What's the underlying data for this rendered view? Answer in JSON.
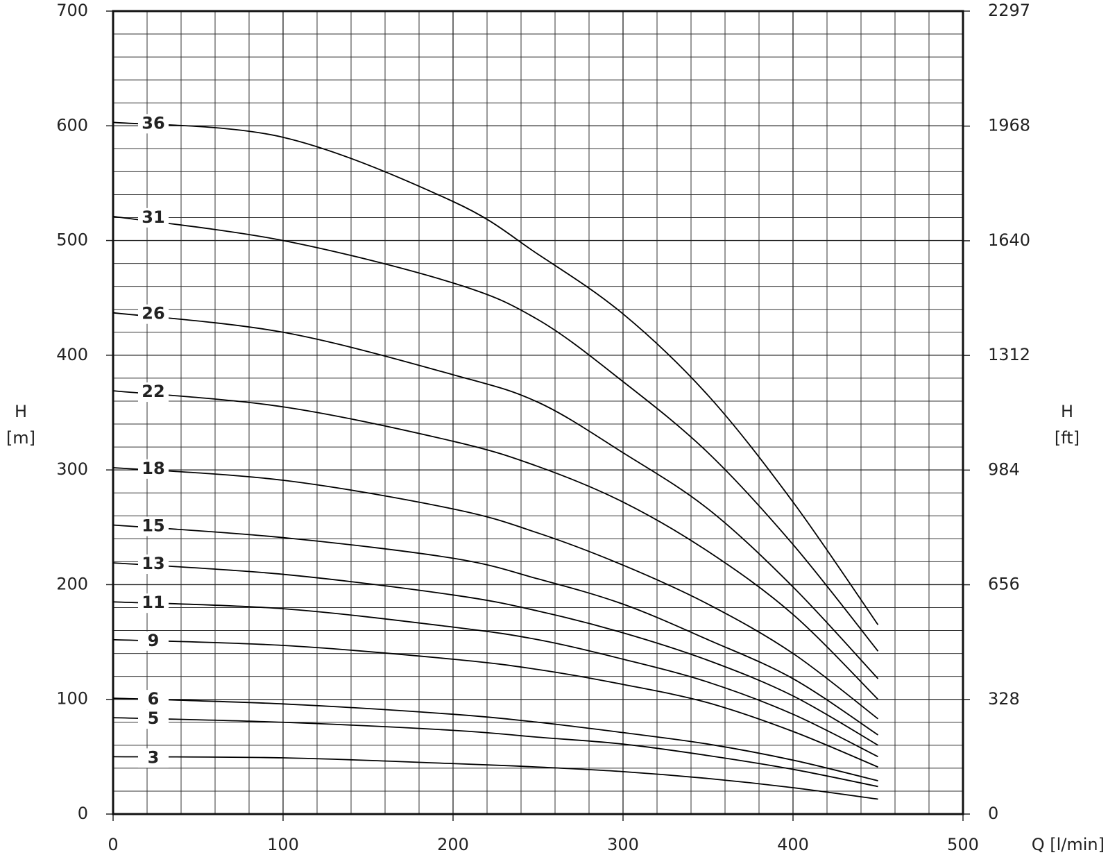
{
  "chart_data": {
    "type": "line",
    "xlabel": "Q [l/min]",
    "ylabel": "H",
    "yunit": "[m]",
    "y2label": "H",
    "y2unit": "[ft]",
    "x": [
      0,
      100,
      200,
      250,
      300,
      350,
      400,
      450
    ],
    "xlim": [
      0,
      500
    ],
    "xticks": [
      0,
      100,
      200,
      300,
      400,
      500
    ],
    "minor_xticks": [
      20,
      40,
      60,
      80,
      120,
      140,
      160,
      180,
      220,
      240,
      260,
      280,
      320,
      340,
      360,
      380,
      420,
      440,
      460,
      480
    ],
    "ylim": [
      0,
      700
    ],
    "yticks": [
      0,
      100,
      200,
      300,
      400,
      500,
      600,
      700
    ],
    "minor_yticks": [
      20,
      40,
      60,
      80,
      120,
      140,
      160,
      180,
      220,
      240,
      260,
      280,
      320,
      340,
      360,
      380,
      420,
      440,
      460,
      480,
      520,
      540,
      560,
      580,
      620,
      640,
      660,
      680
    ],
    "y2lim": [
      0,
      2297
    ],
    "y2ticks": [
      0,
      328,
      656,
      984,
      1312,
      1640,
      1968,
      2297
    ],
    "grid": true,
    "series": [
      {
        "name": "36",
        "color": "#000000",
        "values": [
          603,
          590,
          534,
          488,
          436,
          365,
          272,
          165
        ]
      },
      {
        "name": "31",
        "color": "#000000",
        "values": [
          521,
          500,
          463,
          431,
          377,
          315,
          235,
          142
        ]
      },
      {
        "name": "26",
        "color": "#000000",
        "values": [
          437,
          420,
          383,
          359,
          315,
          266,
          198,
          118
        ]
      },
      {
        "name": "22",
        "color": "#000000",
        "values": [
          369,
          355,
          325,
          303,
          272,
          229,
          174,
          100
        ]
      },
      {
        "name": "18",
        "color": "#000000",
        "values": [
          302,
          291,
          266,
          245,
          217,
          183,
          140,
          83
        ]
      },
      {
        "name": "15",
        "color": "#000000",
        "values": [
          252,
          241,
          223,
          205,
          183,
          152,
          118,
          69
        ]
      },
      {
        "name": "13",
        "color": "#000000",
        "values": [
          219,
          209,
          191,
          177,
          158,
          134,
          103,
          60
        ]
      },
      {
        "name": "11",
        "color": "#000000",
        "values": [
          185,
          179,
          163,
          152,
          135,
          115,
          87,
          50
        ]
      },
      {
        "name": "9",
        "color": "#000000",
        "values": [
          152,
          147,
          135,
          126,
          113,
          97,
          72,
          41
        ]
      },
      {
        "name": "6",
        "color": "#000000",
        "values": [
          101,
          96,
          87,
          80,
          71,
          61,
          47,
          29
        ]
      },
      {
        "name": "5",
        "color": "#000000",
        "values": [
          84,
          80,
          73,
          67,
          61,
          51,
          39,
          24
        ]
      },
      {
        "name": "3",
        "color": "#000000",
        "values": [
          50,
          49,
          44,
          41,
          37,
          31,
          23,
          13
        ]
      }
    ]
  }
}
